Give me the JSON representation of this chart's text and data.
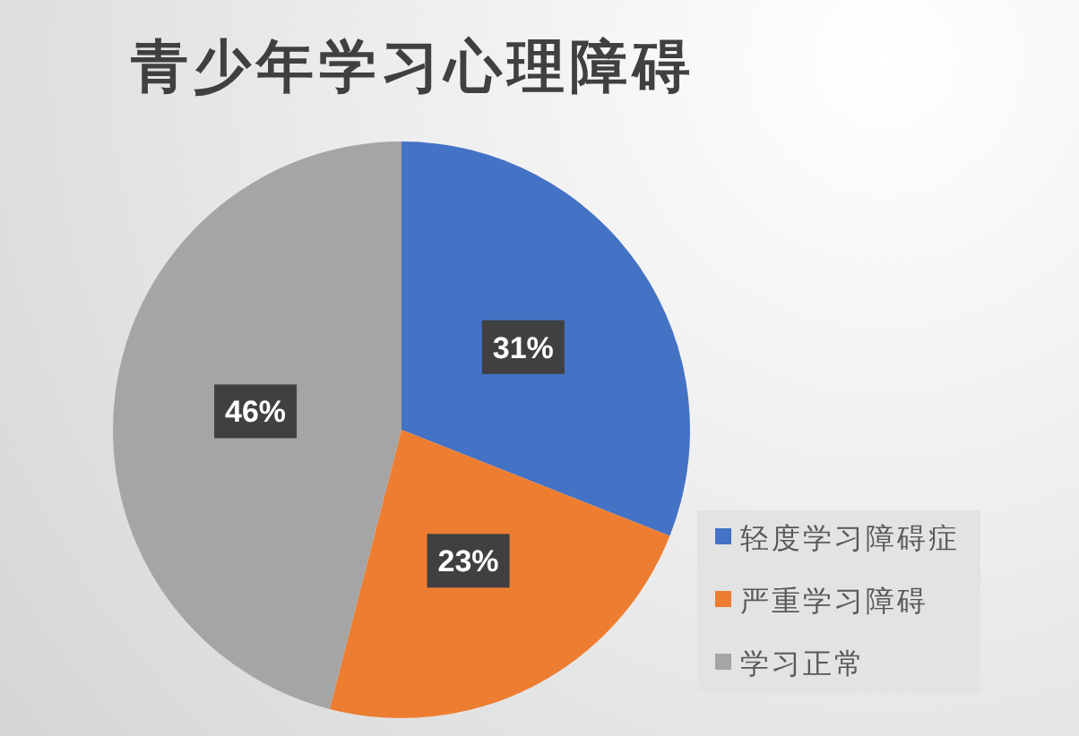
{
  "chart_data": {
    "type": "pie",
    "title": "青少年学习心理障碍",
    "categories": [
      "轻度学习障碍症",
      "严重学习障碍",
      "学习正常"
    ],
    "values": [
      31,
      23,
      46
    ],
    "colors": [
      "#4472c4",
      "#ed7d31",
      "#a5a5a5"
    ],
    "value_labels": [
      "31%",
      "23%",
      "46%"
    ],
    "legend": "bottom right"
  }
}
